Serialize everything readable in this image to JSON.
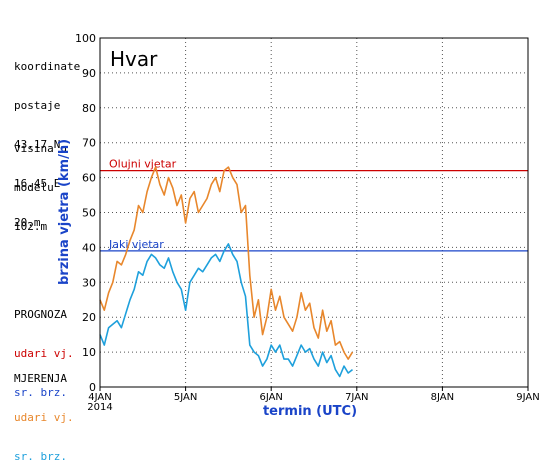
{
  "station": {
    "coord_label": "koordinate",
    "postaje_label": "postaje",
    "lat": "43.17 N",
    "lon": "16.45 E",
    "elev": "20.m",
    "height_label_1": "visina u",
    "height_label_2": "modelu",
    "model_height": "102.m"
  },
  "legend": {
    "forecast_title": "PROGNOZA",
    "forecast_gust": "udari vj.",
    "forecast_mean": "sr. brz.",
    "obs_title": "MJERENJA",
    "obs_gust": "udari vj.",
    "obs_mean": "sr. brz."
  },
  "colors": {
    "gust": "#e8872c",
    "mean": "#1ea0dc",
    "storm": "#cc0000",
    "strong": "#1a44c8",
    "forecast_gust": "#cc0000",
    "forecast_mean": "#1a44c8"
  },
  "chart_data": {
    "type": "line",
    "title": "Hvar",
    "xlabel": "termin (UTC)",
    "ylabel": "brzina vjetra (km/h)",
    "ylim": [
      0,
      100
    ],
    "xlim": [
      0,
      5
    ],
    "yticks": [
      0,
      10,
      20,
      30,
      40,
      50,
      60,
      70,
      80,
      90,
      100
    ],
    "xticks": [
      {
        "pos": 0,
        "label": "4JAN",
        "sublabel": "2014"
      },
      {
        "pos": 1,
        "label": "5JAN"
      },
      {
        "pos": 2,
        "label": "6JAN"
      },
      {
        "pos": 3,
        "label": "7JAN"
      },
      {
        "pos": 4,
        "label": "8JAN"
      },
      {
        "pos": 5,
        "label": "9JAN"
      }
    ],
    "grid": true,
    "thresholds": [
      {
        "name": "Olujni vjetar",
        "value": 62
      },
      {
        "name": "Jaki vjetar",
        "value": 39
      }
    ],
    "series": [
      {
        "name": "udari vj.",
        "x": [
          0.0,
          0.05,
          0.1,
          0.15,
          0.2,
          0.25,
          0.3,
          0.35,
          0.4,
          0.45,
          0.5,
          0.55,
          0.6,
          0.65,
          0.7,
          0.75,
          0.8,
          0.85,
          0.9,
          0.95,
          1.0,
          1.05,
          1.1,
          1.15,
          1.2,
          1.25,
          1.3,
          1.35,
          1.4,
          1.45,
          1.5,
          1.55,
          1.6,
          1.65,
          1.7,
          1.75,
          1.8,
          1.85,
          1.9,
          1.95,
          2.0,
          2.05,
          2.1,
          2.15,
          2.2,
          2.25,
          2.3,
          2.35,
          2.4,
          2.45,
          2.5,
          2.55,
          2.6,
          2.65,
          2.7,
          2.75,
          2.8,
          2.85,
          2.9,
          2.95
        ],
        "values": [
          25,
          22,
          27,
          30,
          36,
          35,
          38,
          42,
          45,
          52,
          50,
          56,
          60,
          63,
          58,
          55,
          60,
          57,
          52,
          55,
          47,
          54,
          56,
          50,
          52,
          54,
          58,
          60,
          56,
          62,
          63,
          60,
          58,
          50,
          52,
          32,
          20,
          25,
          15,
          20,
          28,
          22,
          26,
          20,
          18,
          16,
          20,
          27,
          22,
          24,
          17,
          14,
          22,
          16,
          19,
          12,
          13,
          10,
          8,
          10
        ]
      },
      {
        "name": "sr. brz.",
        "x": [
          0.0,
          0.05,
          0.1,
          0.15,
          0.2,
          0.25,
          0.3,
          0.35,
          0.4,
          0.45,
          0.5,
          0.55,
          0.6,
          0.65,
          0.7,
          0.75,
          0.8,
          0.85,
          0.9,
          0.95,
          1.0,
          1.05,
          1.1,
          1.15,
          1.2,
          1.25,
          1.3,
          1.35,
          1.4,
          1.45,
          1.5,
          1.55,
          1.6,
          1.65,
          1.7,
          1.75,
          1.8,
          1.85,
          1.9,
          1.95,
          2.0,
          2.05,
          2.1,
          2.15,
          2.2,
          2.25,
          2.3,
          2.35,
          2.4,
          2.45,
          2.5,
          2.55,
          2.6,
          2.65,
          2.7,
          2.75,
          2.8,
          2.85,
          2.9,
          2.95
        ],
        "values": [
          15,
          12,
          17,
          18,
          19,
          17,
          21,
          25,
          28,
          33,
          32,
          36,
          38,
          37,
          35,
          34,
          37,
          33,
          30,
          28,
          22,
          30,
          32,
          34,
          33,
          35,
          37,
          38,
          36,
          39,
          41,
          38,
          36,
          30,
          26,
          12,
          10,
          9,
          6,
          8,
          12,
          10,
          12,
          8,
          8,
          6,
          9,
          12,
          10,
          11,
          8,
          6,
          10,
          7,
          9,
          5,
          3,
          6,
          4,
          5
        ]
      }
    ]
  }
}
